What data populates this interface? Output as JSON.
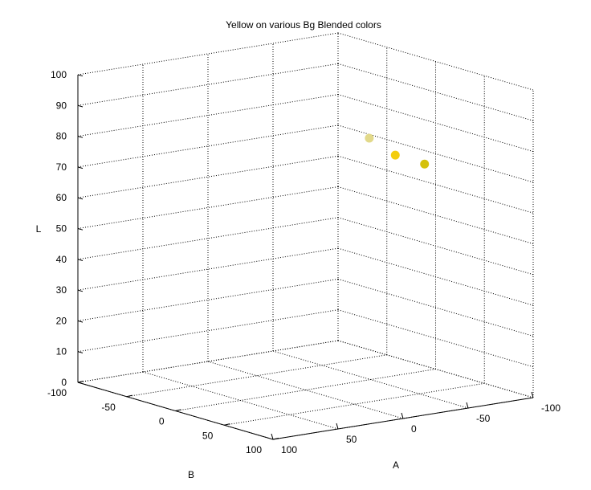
{
  "chart_data": {
    "type": "scatter",
    "title": "Yellow on various Bg Blended colors",
    "xlabel": "A",
    "ylabel": "B",
    "zlabel": "L",
    "xlim": [
      -100,
      100
    ],
    "ylim": [
      -100,
      100
    ],
    "zlim": [
      0,
      100
    ],
    "grid": true,
    "x_ticks": [
      -100,
      -50,
      0,
      50,
      100
    ],
    "y_ticks": [
      -100,
      -50,
      0,
      50,
      100
    ],
    "z_ticks": [
      0,
      10,
      20,
      30,
      40,
      50,
      60,
      70,
      80,
      90,
      100
    ],
    "points": [
      {
        "a": -10,
        "b": 52,
        "l": 86,
        "color": "#e2d98a"
      },
      {
        "a": -15,
        "b": 72,
        "l": 82,
        "color": "#f3cd0e"
      },
      {
        "a": -30,
        "b": 82,
        "l": 79,
        "color": "#d5c10c"
      }
    ]
  }
}
